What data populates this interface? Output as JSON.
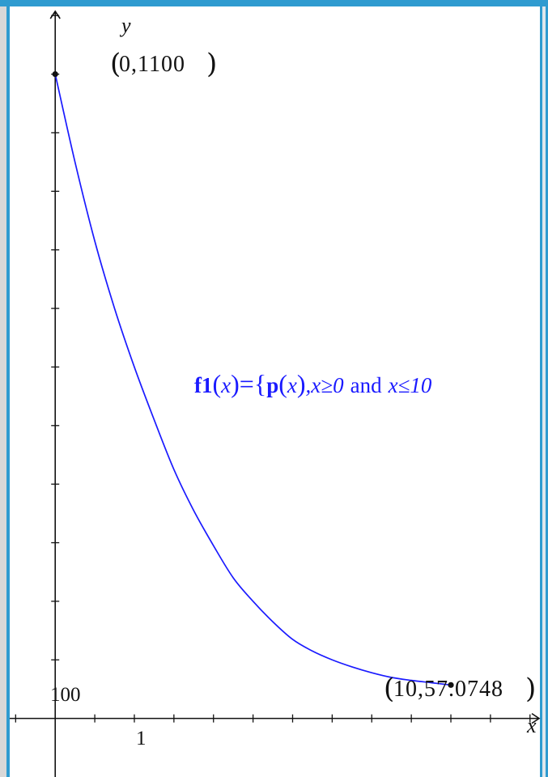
{
  "chart_data": {
    "type": "line",
    "title": "",
    "xlabel": "x",
    "ylabel": "y",
    "xlim": [
      -1.15,
      12.25
    ],
    "ylim": [
      -100,
      1210
    ],
    "x_tick_step": 1,
    "y_tick_step": 100,
    "tick_labels": {
      "x": "1",
      "y": "100"
    },
    "function_label": {
      "name": "f1",
      "arg": "x",
      "eq_brace": "={",
      "inner_fn": "p",
      "condition_part1": ",x≥0",
      "condition_and": "and",
      "condition_part2": "x≤10"
    },
    "series": [
      {
        "color": "#1a1aff",
        "x": [
          0,
          0.5,
          1,
          1.5,
          2,
          2.5,
          3,
          3.5,
          4,
          4.5,
          5,
          5.5,
          6,
          6.5,
          7,
          7.5,
          8,
          8.5,
          9,
          9.5,
          10
        ],
        "y": [
          1100,
          950,
          815,
          700,
          600,
          510,
          425,
          355,
          295,
          240,
          200,
          165,
          135,
          115,
          100,
          88,
          78,
          70,
          65,
          61,
          57.0748
        ]
      }
    ],
    "points": [
      {
        "x": 0,
        "y": 1100,
        "label": "0,1100"
      },
      {
        "x": 10,
        "y": 57.0748,
        "label": "10,57.0748"
      }
    ]
  }
}
